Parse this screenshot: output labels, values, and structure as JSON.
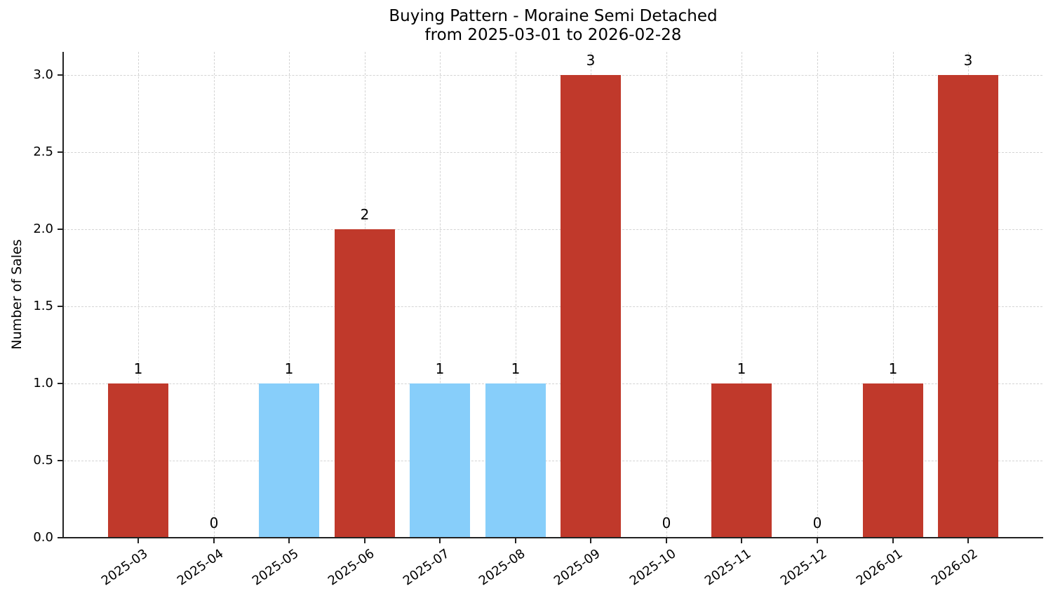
{
  "chart_data": {
    "type": "bar",
    "title": "Buying Pattern - Moraine Semi Detached",
    "subtitle": "from 2025-03-01 to 2026-02-28",
    "xlabel": "",
    "ylabel": "Number of Sales",
    "categories": [
      "2025-03",
      "2025-04",
      "2025-05",
      "2025-06",
      "2025-07",
      "2025-08",
      "2025-09",
      "2025-10",
      "2025-11",
      "2025-12",
      "2026-01",
      "2026-02"
    ],
    "values": [
      1,
      0,
      1,
      2,
      1,
      1,
      3,
      0,
      1,
      0,
      1,
      3
    ],
    "bar_colors": [
      "#C0392B",
      "#C0392B",
      "#87CEFA",
      "#C0392B",
      "#87CEFA",
      "#87CEFA",
      "#C0392B",
      "#C0392B",
      "#C0392B",
      "#C0392B",
      "#C0392B",
      "#C0392B"
    ],
    "data_labels": [
      "1",
      "0",
      "1",
      "2",
      "1",
      "1",
      "3",
      "0",
      "1",
      "0",
      "1",
      "3"
    ],
    "ylim": [
      0,
      3.15
    ],
    "yticks": [
      "0.0",
      "0.5",
      "1.0",
      "1.5",
      "2.0",
      "2.5",
      "3.0"
    ],
    "grid": true,
    "legend": null
  },
  "colors": {
    "high": "#C0392B",
    "low": "#87CEFA"
  }
}
